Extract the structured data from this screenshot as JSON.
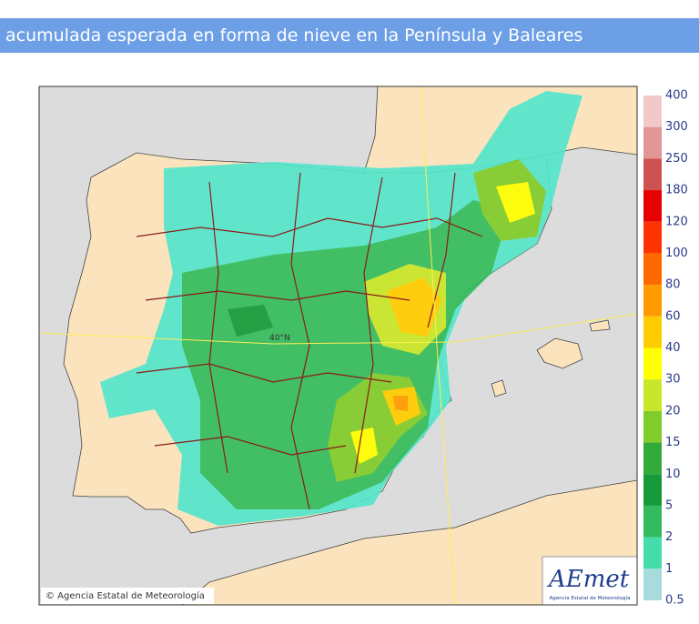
{
  "header": {
    "title": "acumulada esperada en forma de nieve en la Península y Baleares"
  },
  "map": {
    "latitude_label": "40°N",
    "copyright": "© Agencia Estatal de Meteorología",
    "logo": {
      "name": "AEmet",
      "subtitle": "Agencia Estatal de Meteorología"
    }
  },
  "legend": {
    "labels": [
      "400",
      "300",
      "250",
      "180",
      "120",
      "100",
      "80",
      "60",
      "40",
      "30",
      "20",
      "15",
      "10",
      "5",
      "2",
      "1",
      "0.5"
    ],
    "colors": [
      "#f2c8c8",
      "#e39696",
      "#cf5252",
      "#e60000",
      "#ff3300",
      "#ff6a00",
      "#ff9a00",
      "#ffcc00",
      "#ffff00",
      "#c8e62a",
      "#7fcc2a",
      "#33aa3a",
      "#169a3a",
      "#33bb5e",
      "#44ddaa",
      "#a8dcdc"
    ]
  }
}
